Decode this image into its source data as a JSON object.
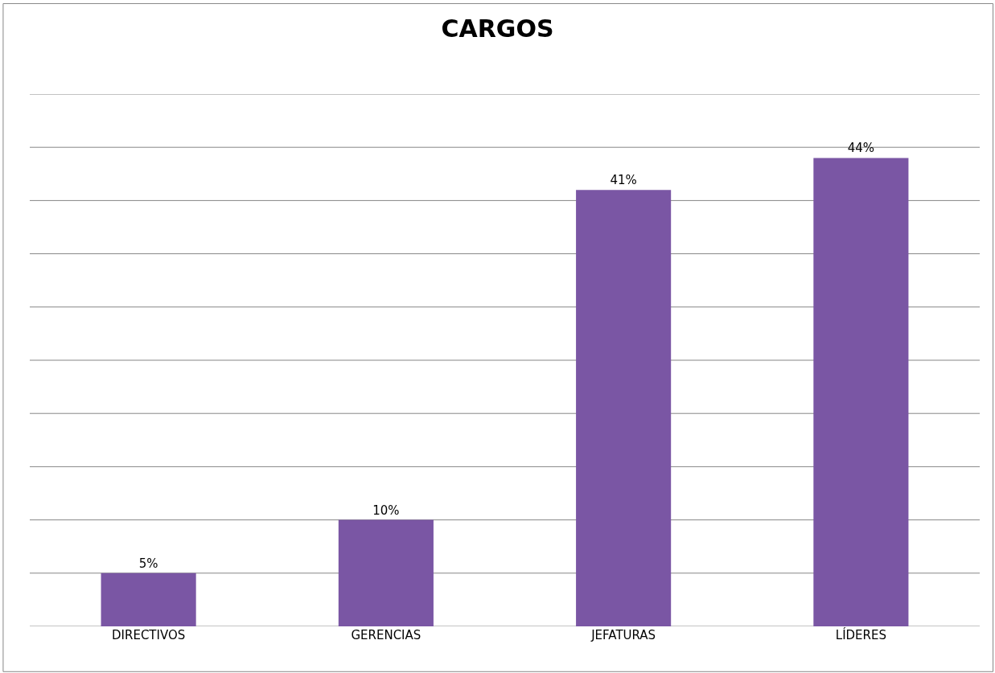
{
  "chart_data": {
    "type": "bar",
    "title": "CARGOS",
    "categories": [
      "DIRECTIVOS",
      "GERENCIAS",
      "JEFATURAS",
      "LÍDERES"
    ],
    "values": [
      5,
      10,
      41,
      44
    ],
    "value_labels": [
      "5%",
      "10%",
      "41%",
      "44%"
    ],
    "color": "#7a56a4",
    "ylim": [
      0,
      50
    ],
    "yticks": [
      {
        "value": 0,
        "label": null
      },
      {
        "value": 5,
        "label": null
      },
      {
        "value": 10,
        "label": null
      },
      {
        "value": 15,
        "label": null
      },
      {
        "value": 20,
        "label": null
      },
      {
        "value": 25,
        "label": null
      },
      {
        "value": 30,
        "label": null
      },
      {
        "value": 35,
        "label": null
      },
      {
        "value": 40,
        "label": null
      },
      {
        "value": 45,
        "label": null
      },
      {
        "value": 50,
        "label": null
      }
    ],
    "grid": "y",
    "tick_labels": "x"
  }
}
